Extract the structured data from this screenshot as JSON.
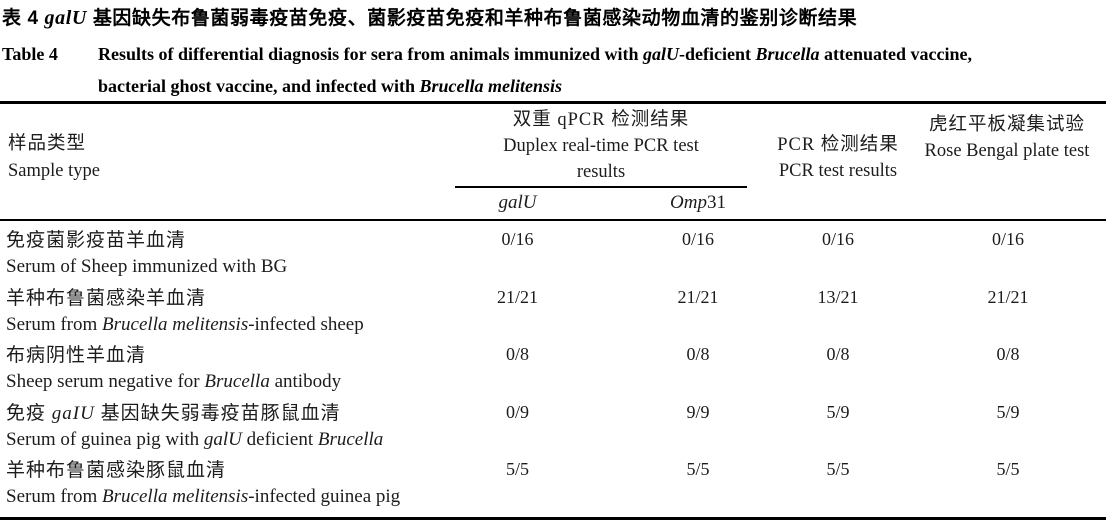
{
  "caption": {
    "cn_segments": [
      {
        "t": "表 4  ",
        "i": false
      },
      {
        "t": "galU",
        "i": true
      },
      {
        "t": " 基因缺失布鲁菌弱毒疫苗免疫、菌影疫苗免疫和羊种布鲁菌感染动物血清的鉴别诊断结果",
        "i": false
      }
    ],
    "en_label": "Table 4",
    "en_line1_segments": [
      {
        "t": "Results of differential diagnosis for sera from animals immunized with ",
        "i": false
      },
      {
        "t": "galU",
        "i": true
      },
      {
        "t": "-deficient ",
        "i": false
      },
      {
        "t": "Brucella",
        "i": true
      },
      {
        "t": " attenuated vaccine,",
        "i": false
      }
    ],
    "en_line2_segments": [
      {
        "t": "bacterial ghost vaccine, and infected with ",
        "i": false
      },
      {
        "t": "Brucella melitensis",
        "i": true
      }
    ]
  },
  "table": {
    "header": {
      "sample_type": {
        "cn": "样品类型",
        "en": "Sample type"
      },
      "duplex_group": {
        "cn": "双重 qPCR 检测结果",
        "en": "Duplex real-time PCR test results"
      },
      "sub_columns": [
        {
          "segments": [
            {
              "t": "galU",
              "i": true
            }
          ]
        },
        {
          "segments": [
            {
              "t": "Omp",
              "i": true
            },
            {
              "t": "31",
              "i": false
            }
          ]
        }
      ],
      "pcr": {
        "cn": "PCR 检测结果",
        "en": "PCR test results"
      },
      "rose_bengal": {
        "cn": "虎红平板凝集试验",
        "en": "Rose Bengal plate test"
      }
    },
    "rows": [
      {
        "cn_segments": [
          {
            "t": "免疫菌影疫苗羊血清",
            "i": false
          }
        ],
        "en_segments": [
          {
            "t": "Serum of Sheep immunized with BG",
            "i": false
          }
        ],
        "values": [
          "0/16",
          "0/16",
          "0/16",
          "0/16"
        ]
      },
      {
        "cn_segments": [
          {
            "t": "羊种布鲁菌感染羊血清",
            "i": false
          }
        ],
        "en_segments": [
          {
            "t": "Serum from ",
            "i": false
          },
          {
            "t": "Brucella melitensis",
            "i": true
          },
          {
            "t": "-infected sheep",
            "i": false
          }
        ],
        "values": [
          "21/21",
          "21/21",
          "13/21",
          "21/21"
        ]
      },
      {
        "cn_segments": [
          {
            "t": "布病阴性羊血清",
            "i": false
          }
        ],
        "en_segments": [
          {
            "t": "Sheep serum negative for ",
            "i": false
          },
          {
            "t": "Brucella",
            "i": true
          },
          {
            "t": " antibody",
            "i": false
          }
        ],
        "values": [
          "0/8",
          "0/8",
          "0/8",
          "0/8"
        ]
      },
      {
        "cn_segments": [
          {
            "t": "免疫 ",
            "i": false
          },
          {
            "t": "gaIU",
            "i": true
          },
          {
            "t": " 基因缺失弱毒疫苗豚鼠血清",
            "i": false
          }
        ],
        "en_segments": [
          {
            "t": "Serum of guinea pig with ",
            "i": false
          },
          {
            "t": "galU",
            "i": true
          },
          {
            "t": " deficient ",
            "i": false
          },
          {
            "t": "Brucella",
            "i": true
          }
        ],
        "values": [
          "0/9",
          "9/9",
          "5/9",
          "5/9"
        ]
      },
      {
        "cn_segments": [
          {
            "t": "羊种布鲁菌感染豚鼠血清",
            "i": false
          }
        ],
        "en_segments": [
          {
            "t": "Serum from ",
            "i": false
          },
          {
            "t": "Brucella melitensis",
            "i": true
          },
          {
            "t": "-infected guinea pig",
            "i": false
          }
        ],
        "values": [
          "5/5",
          "5/5",
          "5/5",
          "5/5"
        ]
      }
    ]
  }
}
